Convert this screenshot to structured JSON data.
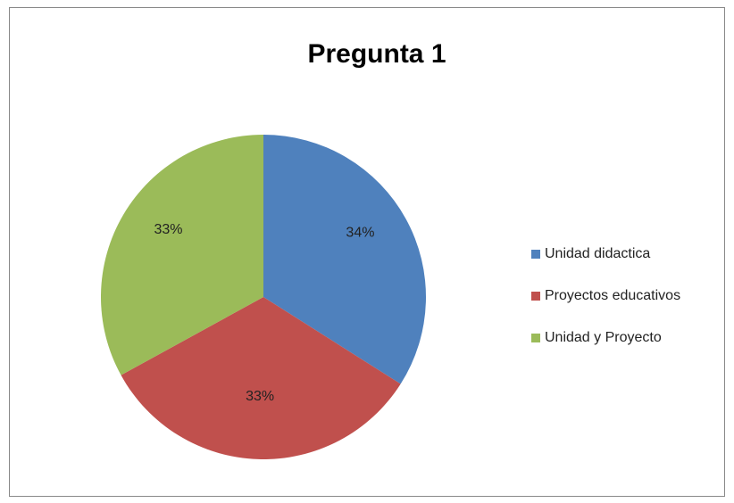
{
  "chart_data": {
    "type": "pie",
    "title": "Pregunta 1",
    "categories": [
      "Unidad didactica",
      "Proyectos educativos",
      "Unidad y Proyecto"
    ],
    "values": [
      34,
      33,
      33
    ],
    "value_labels": [
      "34%",
      "33%",
      "33%"
    ],
    "colors": [
      "#4f81bd",
      "#c0504d",
      "#9bbb59"
    ],
    "legend": "right"
  }
}
